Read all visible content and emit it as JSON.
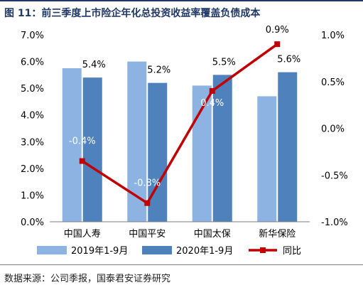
{
  "figure": {
    "title": "图 11：前三季度上市险企年化总投资收益率覆盖负债成本",
    "source": "数据来源：公司季报，国泰君安证券研究"
  },
  "chart_data": {
    "type": "bar",
    "categories": [
      "中国人寿",
      "中国平安",
      "中国太保",
      "新华保险"
    ],
    "series": [
      {
        "name": "2019年1-9月",
        "type": "bar",
        "axis": "left",
        "color": "#8db3e2",
        "values": [
          5.75,
          6.0,
          5.1,
          4.7
        ]
      },
      {
        "name": "2020年1-9月",
        "type": "bar",
        "axis": "left",
        "color": "#4f81bd",
        "values": [
          5.4,
          5.2,
          5.5,
          5.6
        ],
        "labels": [
          "5.4%",
          "5.2%",
          "5.5%",
          "5.6%"
        ]
      },
      {
        "name": "同比",
        "type": "line",
        "axis": "right",
        "color": "#c00000",
        "values": [
          -0.35,
          -0.8,
          0.4,
          0.9
        ],
        "labels": [
          "-0.4%",
          "-0.8%",
          "0.4%",
          "0.9%"
        ]
      }
    ],
    "y_left": {
      "min": 0,
      "max": 7,
      "ticks": [
        0,
        1,
        2,
        3,
        4,
        5,
        6,
        7
      ],
      "tick_labels": [
        "0.0%",
        "1.0%",
        "2.0%",
        "3.0%",
        "4.0%",
        "5.0%",
        "6.0%",
        "7.0%"
      ]
    },
    "y_right": {
      "min": -1.0,
      "max": 1.0,
      "ticks": [
        -1.0,
        -0.5,
        0.0,
        0.5,
        1.0
      ],
      "tick_labels": [
        "-1.0%",
        "-0.5%",
        "0.0%",
        "0.5%",
        "1.0%"
      ]
    },
    "grid": false,
    "legend_position": "bottom"
  }
}
